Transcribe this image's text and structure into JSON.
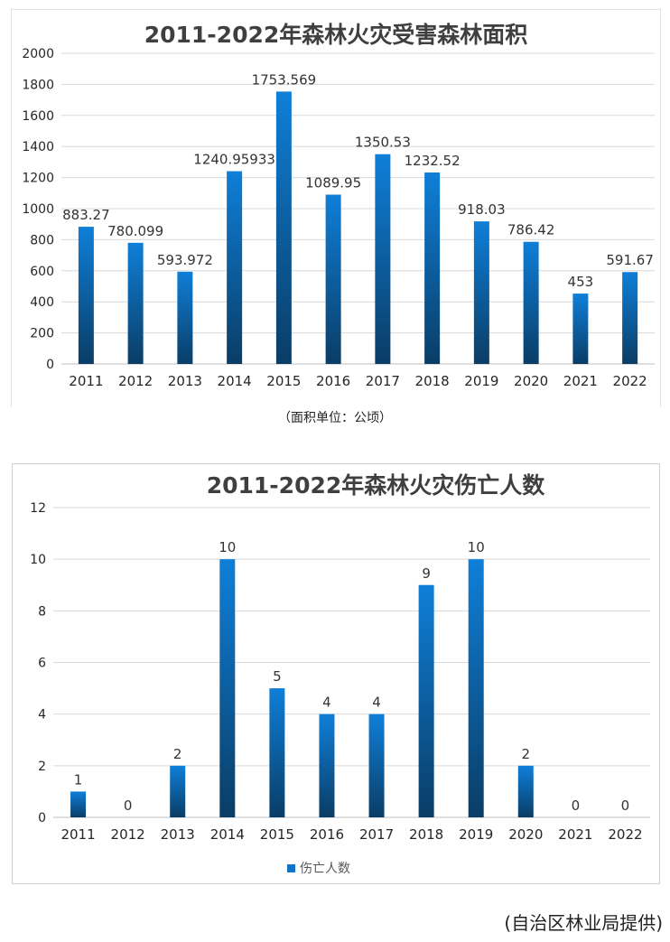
{
  "chart_data": [
    {
      "type": "bar",
      "title": "2011-2022年森林火灾受害森林面积",
      "categories": [
        "2011",
        "2012",
        "2013",
        "2014",
        "2015",
        "2016",
        "2017",
        "2018",
        "2019",
        "2020",
        "2021",
        "2022"
      ],
      "values": [
        883.27,
        780.099,
        593.972,
        1240.95933,
        1753.569,
        1089.95,
        1350.53,
        1232.52,
        918.03,
        786.42,
        453,
        591.67
      ],
      "value_labels": [
        "883.27",
        "780.099",
        "593.972",
        "1240.95933",
        "1753.569",
        "1089.95",
        "1350.53",
        "1232.52",
        "918.03",
        "786.42",
        "453",
        "591.67"
      ],
      "ylim": [
        0,
        2000
      ],
      "yticks": [
        0,
        200,
        400,
        600,
        800,
        1000,
        1200,
        1400,
        1600,
        1800,
        2000
      ],
      "grid": true,
      "bar_color_top": "#0f7fd8",
      "bar_color_bottom": "#0a3d66"
    },
    {
      "type": "bar",
      "title": "2011-2022年森林火灾伤亡人数",
      "categories": [
        "2011",
        "2012",
        "2013",
        "2014",
        "2015",
        "2016",
        "2017",
        "2018",
        "2019",
        "2020",
        "2021",
        "2022"
      ],
      "series": [
        {
          "name": "伤亡人数",
          "values": [
            1,
            0,
            2,
            10,
            5,
            4,
            4,
            9,
            10,
            2,
            0,
            0
          ]
        }
      ],
      "ylim": [
        0,
        12
      ],
      "yticks": [
        0,
        2,
        4,
        6,
        8,
        10,
        12
      ],
      "grid": true,
      "legend": "bottom",
      "bar_color_top": "#0f7fd8",
      "bar_color_bottom": "#0a3d66"
    }
  ],
  "notes": {
    "unit": "（面积单位：公顷）",
    "source": "(自治区林业局提供)"
  }
}
